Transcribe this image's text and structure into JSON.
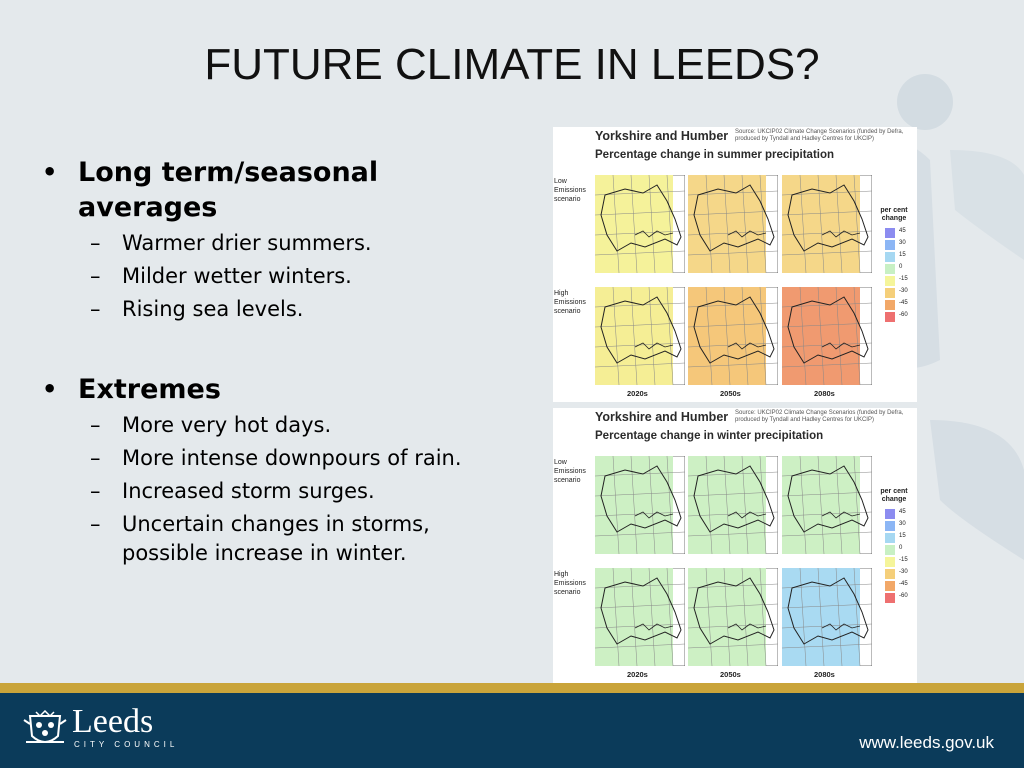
{
  "slide": {
    "title": "FUTURE CLIMATE IN LEEDS?",
    "sections": [
      {
        "heading": "Long term/seasonal averages",
        "items": [
          "Warmer drier summers.",
          "Milder wetter winters.",
          "Rising sea levels."
        ]
      },
      {
        "heading": "Extremes",
        "items": [
          "More very hot days.",
          "More intense downpours of rain.",
          "Increased storm surges.",
          "Uncertain changes in storms, possible increase in winter."
        ]
      }
    ]
  },
  "figure": {
    "region": "Yorkshire and Humber",
    "source": "Source: UKCIP02 Climate Change Scenarios (funded by Defra, produced by Tyndall and Hadley Centres for UKCIP)",
    "row_labels": [
      "Low Emissions scenario",
      "High Emissions scenario"
    ],
    "decades": [
      "2020s",
      "2050s",
      "2080s"
    ],
    "legend_title": "per cent change",
    "legend": [
      {
        "label": "45",
        "color": "#8c8cf0"
      },
      {
        "label": "30",
        "color": "#8cb6f5"
      },
      {
        "label": "15",
        "color": "#a6d8f2"
      },
      {
        "label": "0",
        "color": "#c8f0c4"
      },
      {
        "label": "-15",
        "color": "#f5f59a"
      },
      {
        "label": "-30",
        "color": "#f5cf7a"
      },
      {
        "label": "-45",
        "color": "#f2a868"
      },
      {
        "label": "-60",
        "color": "#ee7070"
      }
    ],
    "panels": [
      {
        "subtitle": "Percentage change in summer precipitation",
        "maps": [
          [
            "#f5f29a",
            "#f5d789",
            "#f5d789"
          ],
          [
            "#f5ee95",
            "#f5c77a",
            "#f09a70"
          ]
        ]
      },
      {
        "subtitle": "Percentage change in winter precipitation",
        "maps": [
          [
            "#cdf0c4",
            "#cdf0c4",
            "#cdf0c4"
          ],
          [
            "#cdf0c4",
            "#cdf0c4",
            "#a9daf2"
          ]
        ]
      }
    ]
  },
  "footer": {
    "logo_text": "Leeds",
    "logo_sub": "CITY COUNCIL",
    "url": "www.leeds.gov.uk"
  }
}
